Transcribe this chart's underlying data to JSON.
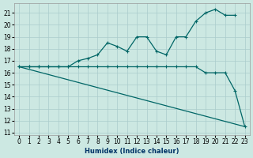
{
  "xlabel": "Humidex (Indice chaleur)",
  "bg_color": "#cce8e2",
  "grid_color": "#aacccc",
  "line_color": "#006666",
  "line1_x": [
    0,
    1,
    2,
    3,
    4,
    5,
    6,
    7,
    8,
    9,
    10,
    11,
    12,
    13,
    14,
    15,
    16,
    17,
    18,
    19,
    20,
    21,
    22
  ],
  "line1_y": [
    16.5,
    16.5,
    16.5,
    16.5,
    16.5,
    16.5,
    17.0,
    17.2,
    17.5,
    18.5,
    18.2,
    17.8,
    19.0,
    19.0,
    17.8,
    17.5,
    19.0,
    19.0,
    20.3,
    21.0,
    21.3,
    20.8,
    20.8
  ],
  "line2_x": [
    0,
    1,
    2,
    3,
    4,
    5,
    6,
    7,
    8,
    9,
    10,
    11,
    12,
    13,
    14,
    15,
    16,
    17,
    18,
    19,
    20,
    21,
    22,
    23
  ],
  "line2_y": [
    16.5,
    16.5,
    16.5,
    16.5,
    16.5,
    16.5,
    16.5,
    16.5,
    16.5,
    16.5,
    16.5,
    16.5,
    16.5,
    16.5,
    16.5,
    16.5,
    16.5,
    16.5,
    16.5,
    16.0,
    16.0,
    16.0,
    14.5,
    11.5
  ],
  "line3_x": [
    0,
    23
  ],
  "line3_y": [
    16.5,
    11.5
  ],
  "yticks": [
    11,
    12,
    13,
    14,
    15,
    16,
    17,
    18,
    19,
    20,
    21
  ],
  "xticks": [
    0,
    1,
    2,
    3,
    4,
    5,
    6,
    7,
    8,
    9,
    10,
    11,
    12,
    13,
    14,
    15,
    16,
    17,
    18,
    19,
    20,
    21,
    22,
    23
  ],
  "xlim": [
    -0.5,
    23.5
  ],
  "ylim": [
    10.8,
    21.8
  ]
}
